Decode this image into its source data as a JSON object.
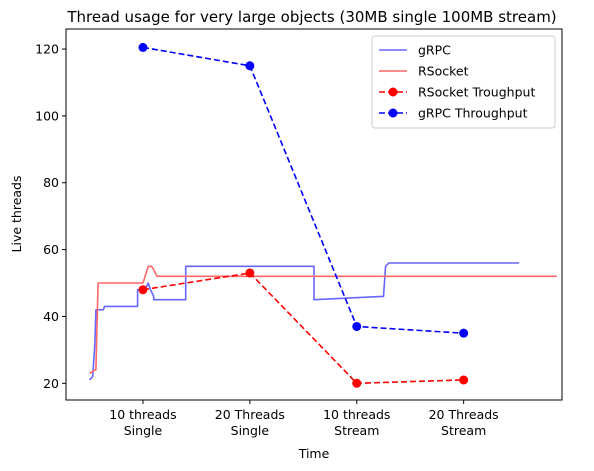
{
  "chart_data": {
    "type": "line",
    "title": "Thread usage for very large objects (30MB single 100MB stream)",
    "xlabel": "Time",
    "ylabel": "Live threads",
    "xlim": [
      -0.72,
      3.92
    ],
    "ylim": [
      15,
      126
    ],
    "yticks": [
      20,
      40,
      60,
      80,
      100,
      120
    ],
    "categories": [
      [
        "10 threads",
        "Single"
      ],
      [
        "20 Threads",
        "Single"
      ],
      [
        "10 threads",
        "Stream"
      ],
      [
        "20 Threads",
        "Stream"
      ]
    ],
    "category_positions": [
      0,
      1,
      2,
      3
    ],
    "legend_position": "upper right",
    "series": [
      {
        "name": "gRPC",
        "style": "solid",
        "color": "#6666ff",
        "x": [
          -0.5,
          -0.47,
          -0.45,
          -0.44,
          -0.42,
          -0.37,
          -0.36,
          -0.33,
          -0.05,
          -0.05,
          0.02,
          0.05,
          0.07,
          0.1,
          0.1,
          0.38,
          0.4,
          0.4,
          1.3,
          1.3,
          1.6,
          1.6,
          2.25,
          2.27,
          2.3,
          2.3,
          3.52
        ],
        "y": [
          21,
          22,
          32,
          42,
          42,
          42,
          43,
          43,
          43,
          48,
          48,
          50,
          48,
          46,
          45,
          45,
          45,
          55,
          55,
          55,
          55,
          45,
          46,
          55,
          56,
          56,
          56
        ]
      },
      {
        "name": "RSocket",
        "style": "solid",
        "color": "#ff6666",
        "x": [
          -0.5,
          -0.47,
          -0.45,
          -0.44,
          -0.42,
          -0.05,
          0,
          0.05,
          0.08,
          0.1,
          0.13,
          1.5,
          3.87
        ],
        "y": [
          23,
          23.5,
          24,
          24,
          50,
          50,
          50,
          55,
          55,
          54,
          52,
          52,
          52
        ]
      },
      {
        "name": "RSocket Troughput",
        "style": "dashed-markers",
        "color": "#ff0000",
        "x": [
          0,
          1,
          2,
          3
        ],
        "y": [
          48,
          53,
          20,
          21
        ]
      },
      {
        "name": "gRPC Throughput",
        "style": "dashed-markers",
        "color": "#0000ff",
        "x": [
          0,
          1,
          2,
          3
        ],
        "y": [
          120.5,
          115,
          37,
          35
        ]
      }
    ]
  }
}
